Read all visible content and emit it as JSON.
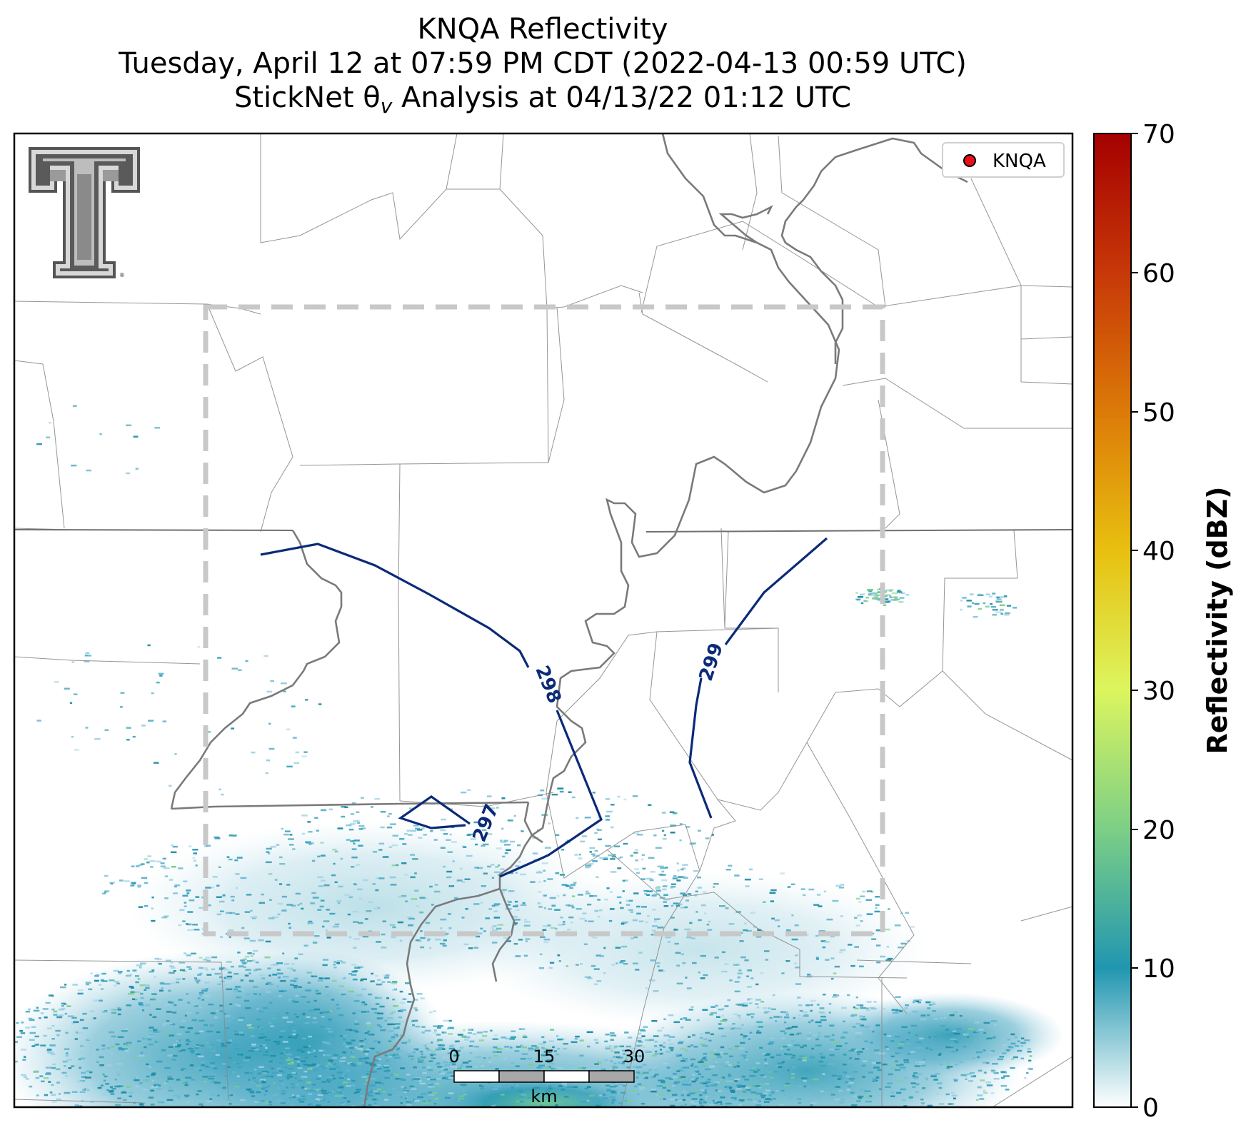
{
  "title": {
    "line1": "KNQA Reflectivity",
    "line2": "Tuesday, April 12 at 07:59 PM CDT (2022-04-13 00:59 UTC)",
    "line3_prefix": "StickNet θ",
    "line3_sub": "v",
    "line3_suffix": " Analysis at 04/13/22 01:12 UTC"
  },
  "legend": {
    "label": "KNQA",
    "marker_color": "#e8101a"
  },
  "colorbar": {
    "title": "Reflectivity (dBZ)",
    "ticks": [
      "0",
      "10",
      "20",
      "30",
      "40",
      "50",
      "60",
      "70"
    ],
    "range": [
      0,
      70
    ],
    "colors": [
      "#ffffff",
      "#2196b0",
      "#7ccf86",
      "#dcf55e",
      "#e8c010",
      "#dc7a08",
      "#c73808",
      "#a50000"
    ]
  },
  "contours": [
    {
      "label": "297",
      "value": 297
    },
    {
      "label": "298",
      "value": 298
    },
    {
      "label": "299",
      "value": 299
    }
  ],
  "scale_bar": {
    "ticks": [
      "0",
      "15",
      "30"
    ],
    "unit": "km"
  },
  "logo": {
    "icon": "texas-tech-double-t-logo",
    "text": "®"
  },
  "colors": {
    "contour": "#0b2a78",
    "analysis_box": "#c8c8c8",
    "boundaries": "#808080"
  }
}
